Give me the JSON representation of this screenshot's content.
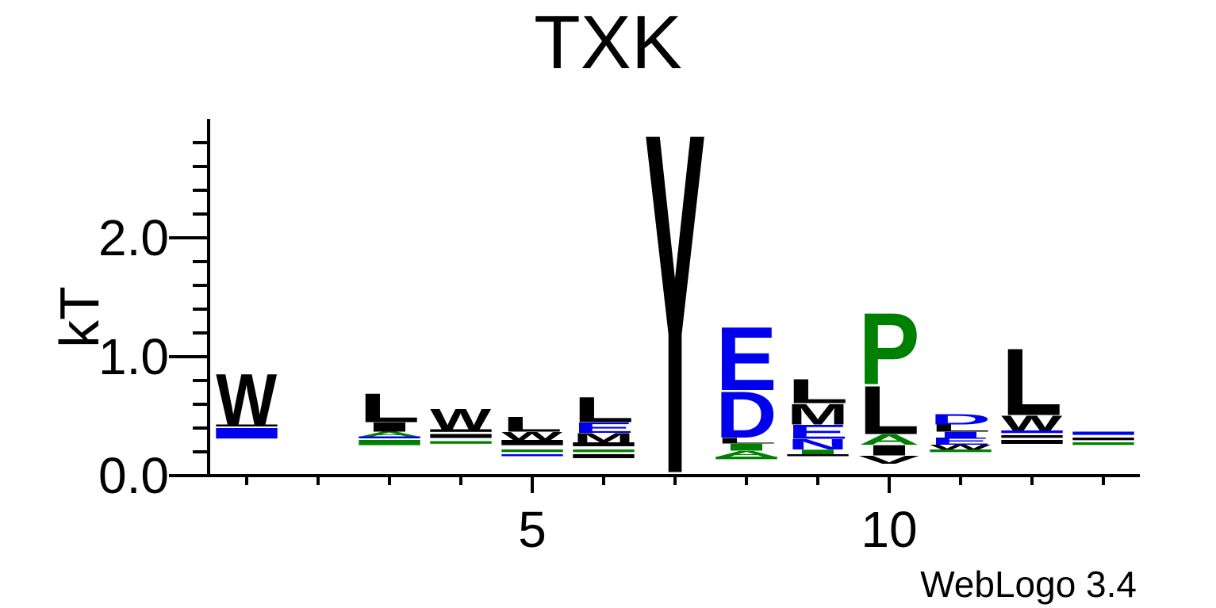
{
  "chart_data": {
    "type": "sequence-logo",
    "title": "TXK",
    "ylabel": "kT",
    "xlabel": "",
    "ylim": [
      0,
      3.0
    ],
    "y_ticks": [
      "0.0",
      "1.0",
      "2.0"
    ],
    "y_tick_values": [
      0,
      1,
      2
    ],
    "x_tick_values": [
      5,
      10
    ],
    "x_tick_labels": [
      "5",
      "10"
    ],
    "positions": [
      1,
      2,
      3,
      4,
      5,
      6,
      7,
      8,
      9,
      10,
      11,
      12,
      13
    ],
    "colors": {
      "black": "#000000",
      "blue": "#0000ee",
      "green": "#008000"
    },
    "columns": [
      {
        "position": 1,
        "base": 0.24,
        "stack": [
          {
            "letter": "-",
            "color": "blue",
            "height": 0.16
          },
          {
            "letter": "-",
            "color": "black",
            "height": 0.03
          },
          {
            "letter": "W",
            "color": "black",
            "height": 0.44
          }
        ]
      },
      {
        "position": 2,
        "base": 0,
        "stack": []
      },
      {
        "position": 3,
        "base": 0.22,
        "stack": [
          {
            "letter": "-",
            "color": "green",
            "height": 0.08
          },
          {
            "letter": "-",
            "color": "blue",
            "height": 0.03
          },
          {
            "letter": "A",
            "color": "green",
            "height": 0.04
          },
          {
            "letter": "I",
            "color": "black",
            "height": 0.08
          },
          {
            "letter": "L",
            "color": "black",
            "height": 0.25
          }
        ]
      },
      {
        "position": 4,
        "base": 0.25,
        "stack": [
          {
            "letter": "-",
            "color": "green",
            "height": 0.04
          },
          {
            "letter": "-",
            "color": "black",
            "height": 0.06
          },
          {
            "letter": "-",
            "color": "black",
            "height": 0.04
          },
          {
            "letter": "W",
            "color": "black",
            "height": 0.18
          }
        ]
      },
      {
        "position": 5,
        "base": 0.15,
        "stack": [
          {
            "letter": "-",
            "color": "blue",
            "height": 0.03
          },
          {
            "letter": "-",
            "color": "green",
            "height": 0.04
          },
          {
            "letter": "-",
            "color": "black",
            "height": 0.08
          },
          {
            "letter": "W",
            "color": "black",
            "height": 0.07
          },
          {
            "letter": "L",
            "color": "black",
            "height": 0.13
          }
        ]
      },
      {
        "position": 6,
        "base": 0.12,
        "stack": [
          {
            "letter": "-",
            "color": "black",
            "height": 0.06
          },
          {
            "letter": "-",
            "color": "green",
            "height": 0.04
          },
          {
            "letter": "-",
            "color": "black",
            "height": 0.06
          },
          {
            "letter": "M",
            "color": "black",
            "height": 0.08
          },
          {
            "letter": "E",
            "color": "blue",
            "height": 0.09
          },
          {
            "letter": "L",
            "color": "black",
            "height": 0.22
          }
        ]
      },
      {
        "position": 7,
        "base": 0.03,
        "stack": [
          {
            "letter": "Y",
            "color": "black",
            "height": 2.95
          }
        ]
      },
      {
        "position": 8,
        "base": 0.12,
        "stack": [
          {
            "letter": "-",
            "color": "green",
            "height": 0.04
          },
          {
            "letter": "A",
            "color": "green",
            "height": 0.05
          },
          {
            "letter": "I",
            "color": "green",
            "height": 0.06
          },
          {
            "letter": "L",
            "color": "black",
            "height": 0.05
          },
          {
            "letter": "D",
            "color": "blue",
            "height": 0.4
          },
          {
            "letter": "E",
            "color": "blue",
            "height": 0.55
          }
        ]
      },
      {
        "position": 9,
        "base": 0.15,
        "stack": [
          {
            "letter": "-",
            "color": "black",
            "height": 0.03
          },
          {
            "letter": "I",
            "color": "green",
            "height": 0.04
          },
          {
            "letter": "N",
            "color": "blue",
            "height": 0.09
          },
          {
            "letter": "E",
            "color": "blue",
            "height": 0.12
          },
          {
            "letter": "M",
            "color": "black",
            "height": 0.18
          },
          {
            "letter": "L",
            "color": "black",
            "height": 0.21
          }
        ]
      },
      {
        "position": 10,
        "base": 0.1,
        "stack": [
          {
            "letter": "V",
            "color": "black",
            "height": 0.07
          },
          {
            "letter": "I",
            "color": "black",
            "height": 0.09
          },
          {
            "letter": "A",
            "color": "green",
            "height": 0.09
          },
          {
            "letter": "L",
            "color": "black",
            "height": 0.42
          },
          {
            "letter": "P",
            "color": "green",
            "height": 0.62
          }
        ]
      },
      {
        "position": 11,
        "base": 0.18,
        "stack": [
          {
            "letter": "-",
            "color": "green",
            "height": 0.04
          },
          {
            "letter": "W",
            "color": "black",
            "height": 0.04
          },
          {
            "letter": "E",
            "color": "blue",
            "height": 0.06
          },
          {
            "letter": "I",
            "color": "blue",
            "height": 0.05
          },
          {
            "letter": "L",
            "color": "black",
            "height": 0.06
          },
          {
            "letter": "D",
            "color": "blue",
            "height": 0.09
          }
        ]
      },
      {
        "position": 12,
        "base": 0.24,
        "stack": [
          {
            "letter": "-",
            "color": "black",
            "height": 0.06
          },
          {
            "letter": "-",
            "color": "black",
            "height": 0.04
          },
          {
            "letter": "-",
            "color": "blue",
            "height": 0.04
          },
          {
            "letter": "W",
            "color": "black",
            "height": 0.13
          },
          {
            "letter": "L",
            "color": "black",
            "height": 0.58
          }
        ]
      },
      {
        "position": 13,
        "base": 0.24,
        "stack": [
          {
            "letter": "-",
            "color": "green",
            "height": 0.04
          },
          {
            "letter": "-",
            "color": "black",
            "height": 0.04
          },
          {
            "letter": "-",
            "color": "blue",
            "height": 0.05
          }
        ]
      }
    ]
  },
  "footer": "WebLogo 3.4"
}
